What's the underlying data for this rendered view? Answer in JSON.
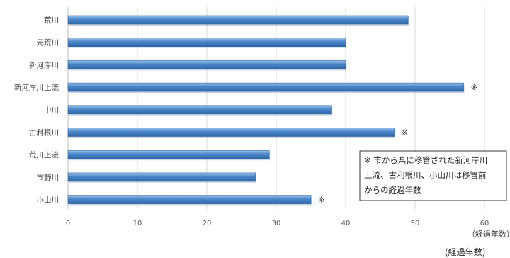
{
  "chart_data": {
    "type": "bar",
    "orientation": "horizontal",
    "categories": [
      "荒川",
      "元荒川",
      "新河岸川",
      "新河岸川上流",
      "中川",
      "古利根川",
      "荒川上流",
      "市野川",
      "小山川"
    ],
    "values": [
      49,
      40,
      40,
      57,
      38,
      47,
      29,
      27,
      35
    ],
    "marks": [
      "",
      "",
      "",
      "※",
      "",
      "※",
      "",
      "",
      "※"
    ],
    "xlim": [
      0,
      60
    ],
    "xticks": [
      "0",
      "10",
      "20",
      "30",
      "40",
      "50",
      "60"
    ],
    "grid": true,
    "xlabel": "（経過年数）",
    "xlabel_bottom": "(経過年数)",
    "colors": {
      "bar": "#4a86c8",
      "bar_dark": "#2e66a6",
      "bar_light": "#8fb8e4"
    }
  },
  "note": {
    "lines": [
      "※ 市から県に移管された新河岸川",
      "上流、古利根川、小山川は移管前",
      "からの経過年数"
    ]
  }
}
